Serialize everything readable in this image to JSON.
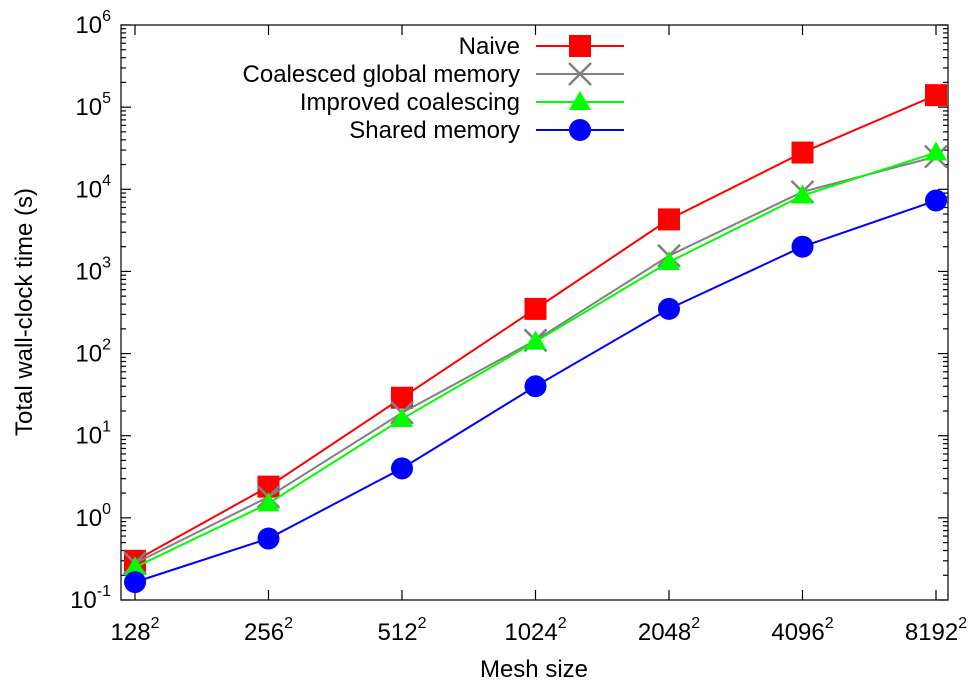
{
  "chart_data": {
    "type": "line",
    "xlabel": "Mesh size",
    "ylabel": "Total wall-clock time (s)",
    "yscale": "log",
    "ylim": [
      0.1,
      1000000
    ],
    "grid": false,
    "legend_position": "top-right",
    "categories": [
      {
        "base": "128",
        "sup": "2"
      },
      {
        "base": "256",
        "sup": "2"
      },
      {
        "base": "512",
        "sup": "2"
      },
      {
        "base": "1024",
        "sup": "2"
      },
      {
        "base": "2048",
        "sup": "2"
      },
      {
        "base": "4096",
        "sup": "2"
      },
      {
        "base": "8192",
        "sup": "2"
      }
    ],
    "y_ticks": [
      {
        "base": "10",
        "sup": "-1",
        "value": 0.1
      },
      {
        "base": "10",
        "sup": "0",
        "value": 1
      },
      {
        "base": "10",
        "sup": "1",
        "value": 10
      },
      {
        "base": "10",
        "sup": "2",
        "value": 100
      },
      {
        "base": "10",
        "sup": "3",
        "value": 1000
      },
      {
        "base": "10",
        "sup": "4",
        "value": 10000
      },
      {
        "base": "10",
        "sup": "5",
        "value": 100000
      },
      {
        "base": "10",
        "sup": "6",
        "value": 1000000
      }
    ],
    "series": [
      {
        "name": "Naive",
        "color": "#ff0000",
        "marker": "square",
        "values": [
          0.3,
          2.4,
          29,
          350,
          4300,
          28000,
          140000
        ]
      },
      {
        "name": "Coalesced global memory",
        "color": "#808080",
        "marker": "x",
        "values": [
          0.28,
          1.8,
          19,
          145,
          1550,
          9300,
          25000
        ]
      },
      {
        "name": "Improved coalescing",
        "color": "#00ff00",
        "marker": "triangle",
        "values": [
          0.25,
          1.5,
          16,
          140,
          1300,
          8400,
          28000
        ]
      },
      {
        "name": "Shared memory",
        "color": "#0000ff",
        "marker": "circle",
        "values": [
          0.165,
          0.56,
          4.0,
          40,
          350,
          2000,
          7300
        ]
      }
    ]
  }
}
